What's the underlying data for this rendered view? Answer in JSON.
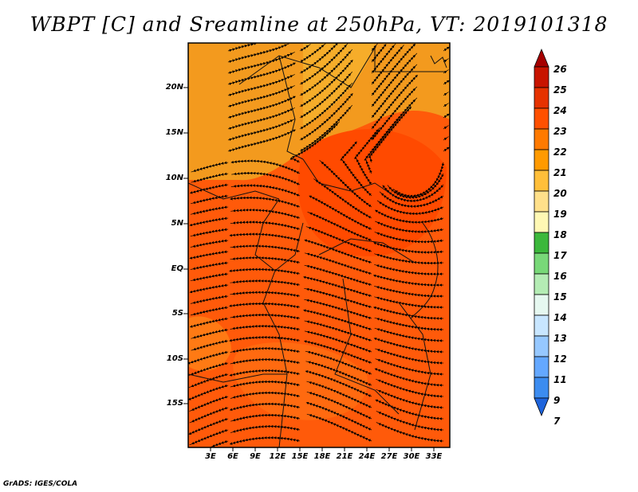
{
  "title": "WBPT [C] and Sreamline at 250hPa, VT: 2019101318",
  "credit": "GrADS: IGES/COLA",
  "lat_labels": [
    "20N",
    "15N",
    "10N",
    "5N",
    "EQ",
    "5S",
    "10S",
    "15S"
  ],
  "lon_labels": [
    "3E",
    "6E",
    "9E",
    "12E",
    "15E",
    "18E",
    "21E",
    "24E",
    "27E",
    "30E",
    "33E"
  ],
  "colorbar": {
    "labels": [
      "26",
      "25",
      "24",
      "23",
      "22",
      "21",
      "20",
      "19",
      "18",
      "17",
      "16",
      "15",
      "14",
      "13",
      "12",
      "11",
      "9",
      "7"
    ],
    "colors": [
      "#a50000",
      "#c81400",
      "#e63200",
      "#ff5000",
      "#ff7a00",
      "#ff9a00",
      "#ffbf3a",
      "#ffe08a",
      "#fff8b4",
      "#3cb83c",
      "#78d878",
      "#b4ecb4",
      "#e6f8f0",
      "#c8e6ff",
      "#96c8ff",
      "#64a8ff",
      "#3c8cf0",
      "#1e64dc"
    ]
  },
  "field_colors": {
    "north": "#f39a1e",
    "mid": "#ff6a10",
    "core": "#ff4a00",
    "south": "#ff5a0a"
  }
}
